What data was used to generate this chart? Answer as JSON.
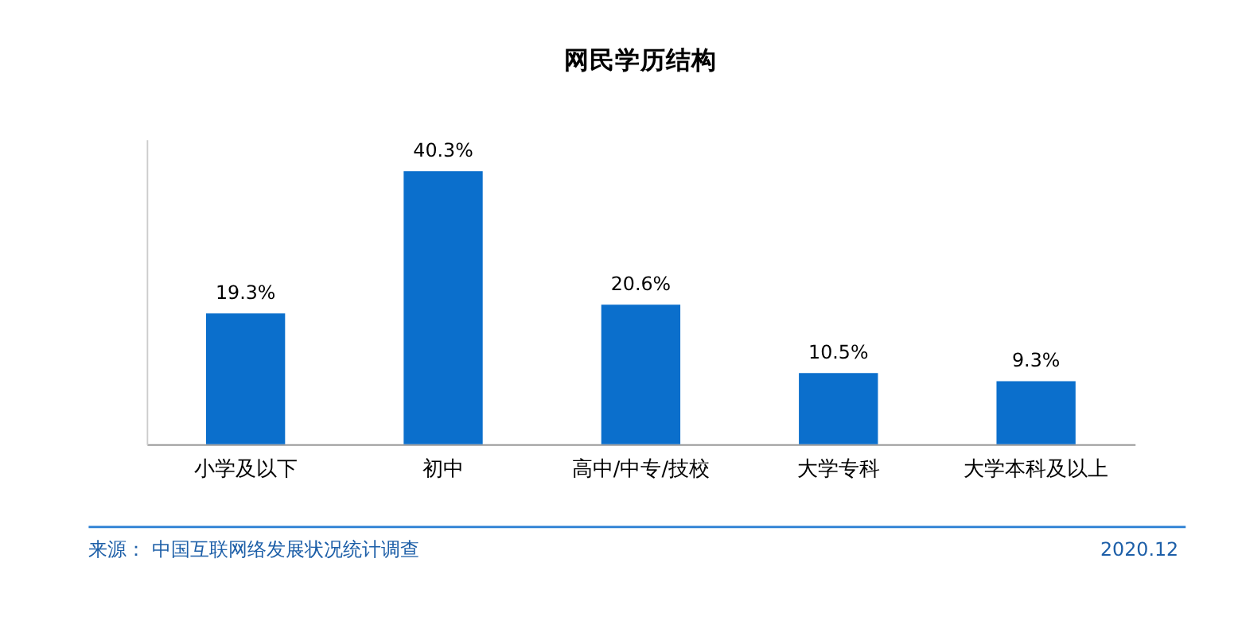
{
  "chart_data": {
    "type": "bar",
    "title": "网民学历结构",
    "categories": [
      "小学及以下",
      "初中",
      "高中/中专/技校",
      "大学专科",
      "大学本科及以上"
    ],
    "values": [
      19.3,
      40.3,
      20.6,
      10.5,
      9.3
    ],
    "color": "#0b6fcc",
    "value_labels": [
      "19.3%",
      "40.3%",
      "20.6%",
      "10.5%",
      "9.3%"
    ],
    "annotations": [
      "来源： 中国互联网络发展状况统计调查",
      "2020.12"
    ]
  }
}
